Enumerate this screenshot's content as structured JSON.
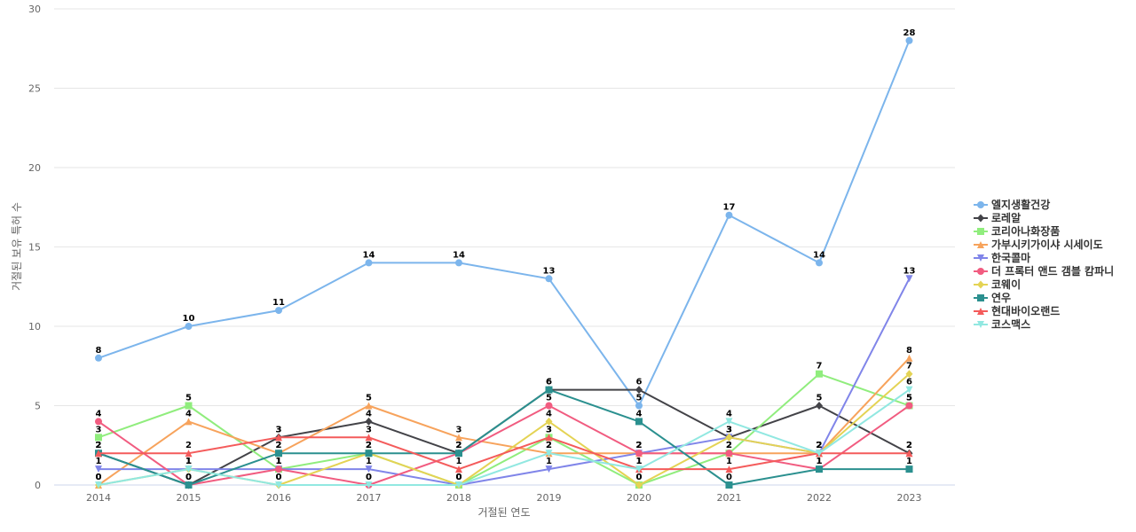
{
  "chart_data": {
    "type": "line",
    "title": "",
    "xlabel": "거절된 연도",
    "ylabel": "거절된 보유 특허 수",
    "x": [
      2014,
      2015,
      2016,
      2017,
      2018,
      2019,
      2020,
      2021,
      2022,
      2023
    ],
    "ylim": [
      0,
      30
    ],
    "yticks": [
      0,
      5,
      10,
      15,
      20,
      25,
      30
    ],
    "grid": true,
    "legend_position": "right",
    "series": [
      {
        "name": "엘지생활건강",
        "color": "#7cb5ec",
        "marker": "circle",
        "values": [
          8,
          10,
          11,
          14,
          14,
          13,
          5,
          17,
          14,
          28
        ]
      },
      {
        "name": "로레알",
        "color": "#434348",
        "marker": "diamond",
        "values": [
          2,
          0,
          3,
          4,
          2,
          6,
          6,
          3,
          5,
          2
        ]
      },
      {
        "name": "코리아나화장품",
        "color": "#90ed7d",
        "marker": "square",
        "values": [
          3,
          5,
          1,
          2,
          0,
          3,
          0,
          2,
          7,
          5
        ]
      },
      {
        "name": "가부시키가이샤 시세이도",
        "color": "#f7a35c",
        "marker": "triangle",
        "values": [
          0,
          4,
          2,
          5,
          3,
          2,
          2,
          2,
          2,
          8
        ]
      },
      {
        "name": "한국콜마",
        "color": "#8085e9",
        "marker": "triangle-down",
        "values": [
          1,
          1,
          1,
          1,
          0,
          1,
          2,
          3,
          2,
          13
        ]
      },
      {
        "name": "더 프록터 앤드 갬블 캄파니",
        "color": "#f15c80",
        "marker": "circle",
        "values": [
          4,
          0,
          1,
          0,
          2,
          5,
          2,
          2,
          1,
          5
        ]
      },
      {
        "name": "코웨이",
        "color": "#e4d354",
        "marker": "diamond",
        "values": [
          0,
          1,
          0,
          2,
          0,
          4,
          0,
          3,
          2,
          7
        ]
      },
      {
        "name": "연우",
        "color": "#2b908f",
        "marker": "square",
        "values": [
          2,
          0,
          2,
          2,
          2,
          6,
          4,
          0,
          1,
          1
        ]
      },
      {
        "name": "현대바이오랜드",
        "color": "#f45b5b",
        "marker": "triangle",
        "values": [
          2,
          2,
          3,
          3,
          1,
          3,
          1,
          1,
          2,
          2
        ]
      },
      {
        "name": "코스맥스",
        "color": "#91e8e1",
        "marker": "triangle-down",
        "values": [
          0,
          1,
          0,
          0,
          0,
          2,
          1,
          4,
          2,
          6
        ]
      }
    ]
  }
}
